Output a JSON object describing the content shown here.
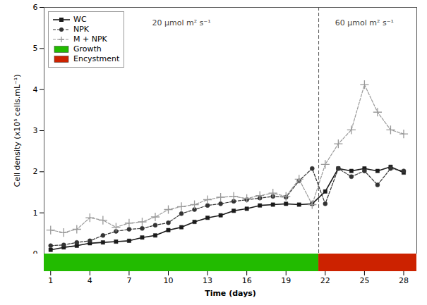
{
  "chart_data": {
    "type": "line",
    "xlabel": "Time (days)",
    "ylabel": "Cell density (x10⁵ cells.mL⁻¹)",
    "x": [
      1,
      2,
      3,
      4,
      5,
      6,
      7,
      8,
      9,
      10,
      11,
      12,
      13,
      14,
      15,
      16,
      17,
      18,
      19,
      20,
      21,
      22,
      23,
      24,
      25,
      26,
      27,
      28
    ],
    "series": [
      {
        "name": "WC",
        "color": "#1a1a1a",
        "marker": "square",
        "line_style": "solid",
        "values": [
          0.1,
          0.16,
          0.2,
          0.26,
          0.28,
          0.3,
          0.32,
          0.4,
          0.45,
          0.58,
          0.65,
          0.78,
          0.88,
          0.94,
          1.05,
          1.1,
          1.18,
          1.2,
          1.22,
          1.2,
          1.22,
          1.52,
          2.08,
          2.02,
          2.08,
          2.02,
          2.12,
          1.98
        ]
      },
      {
        "name": "NPK",
        "color": "#333333",
        "marker": "circle",
        "line_style": "dashed",
        "values": [
          0.2,
          0.22,
          0.28,
          0.32,
          0.45,
          0.55,
          0.6,
          0.62,
          0.7,
          0.76,
          0.98,
          1.08,
          1.18,
          1.22,
          1.28,
          1.32,
          1.36,
          1.4,
          1.38,
          1.78,
          2.08,
          1.22,
          2.08,
          1.88,
          2.02,
          1.68,
          2.08,
          2.02
        ]
      },
      {
        "name": "M + NPK",
        "color": "#999999",
        "marker": "plus",
        "line_style": "dashed",
        "values": [
          0.58,
          0.52,
          0.6,
          0.88,
          0.82,
          0.65,
          0.75,
          0.78,
          0.9,
          1.08,
          1.15,
          1.2,
          1.32,
          1.38,
          1.4,
          1.35,
          1.42,
          1.48,
          1.4,
          1.82,
          1.2,
          2.18,
          2.68,
          3.02,
          4.12,
          3.45,
          3.02,
          2.92
        ]
      }
    ],
    "xlim": [
      0.5,
      29
    ],
    "xticks": [
      1,
      4,
      7,
      10,
      13,
      16,
      19,
      22,
      25,
      28
    ],
    "ylim": [
      0,
      6
    ],
    "yticks": [
      0,
      1,
      2,
      3,
      4,
      5,
      6
    ],
    "legend": "upper left",
    "vlines": [
      21.5
    ],
    "annotations": [
      {
        "text": "20 μmol m² s⁻¹",
        "x": 11,
        "y": 5.7
      },
      {
        "text": "60 μmol m² s⁻¹",
        "x": 25,
        "y": 5.7
      }
    ],
    "phases": [
      {
        "name": "Growth",
        "color": "#22bb00",
        "start": 0.5,
        "end": 21.5
      },
      {
        "name": "Encystment",
        "color": "#cc2200",
        "start": 21.5,
        "end": 29
      }
    ]
  }
}
